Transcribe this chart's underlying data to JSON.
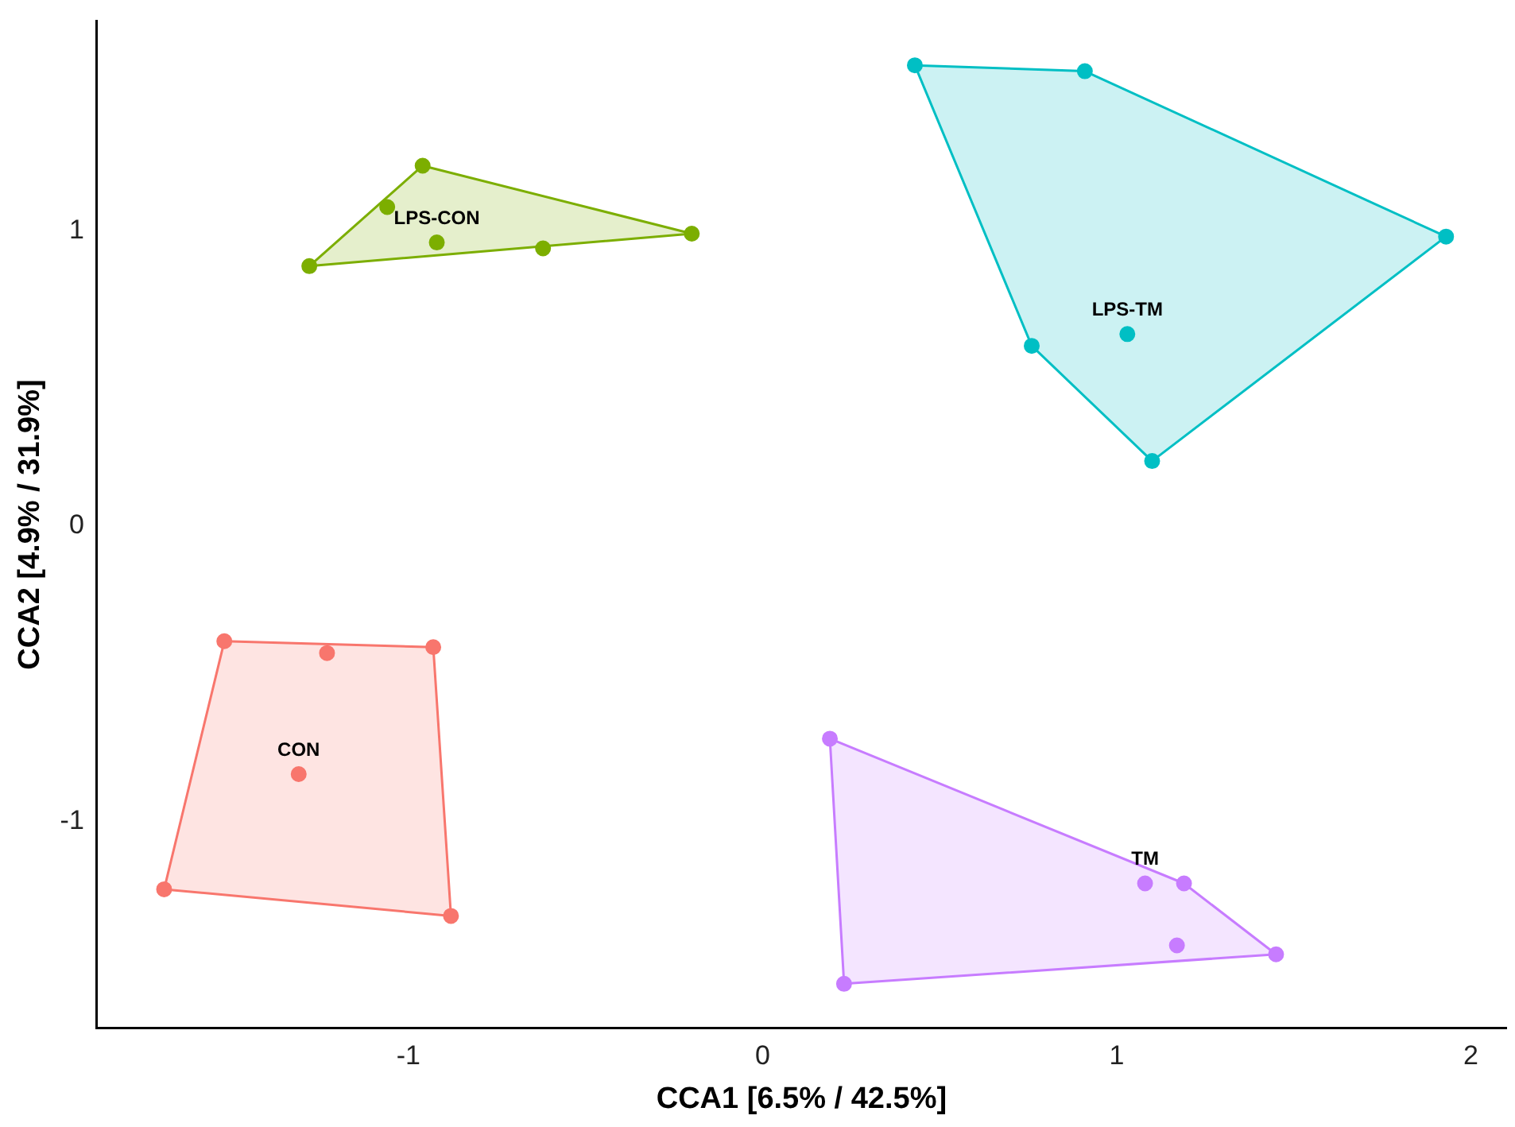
{
  "chart_data": {
    "type": "scatter",
    "xlabel": "CCA1 [6.5% / 42.5%]",
    "ylabel": "CCA2 [4.9% / 31.9%]",
    "xlim": [
      -1.88,
      2.1
    ],
    "ylim": [
      -1.7,
      1.71
    ],
    "xticks": [
      -1,
      0,
      1,
      2
    ],
    "yticks": [
      -1,
      0,
      1
    ],
    "grid": false,
    "legend": false,
    "marker": "circle",
    "series": [
      {
        "type": "area",
        "marker": "none",
        "color": "#f8766d",
        "x": [
          -1.52,
          -0.93,
          -0.88,
          -1.69,
          -1.52
        ],
        "values": [
          -0.39,
          -0.41,
          -1.32,
          -1.23,
          -0.39
        ]
      },
      {
        "type": "area",
        "marker": "none",
        "color": "#7cae00",
        "x": [
          -1.28,
          -0.96,
          -0.2,
          -1.28
        ],
        "values": [
          0.88,
          1.22,
          0.99,
          0.88
        ]
      },
      {
        "type": "area",
        "marker": "none",
        "color": "#00bfc4",
        "x": [
          0.43,
          0.91,
          1.93,
          1.1,
          0.76,
          0.43
        ],
        "values": [
          1.56,
          1.54,
          0.98,
          0.22,
          0.61,
          1.56
        ]
      },
      {
        "type": "area",
        "marker": "none",
        "color": "#c77cff",
        "x": [
          0.19,
          1.19,
          1.45,
          0.23,
          0.19
        ],
        "values": [
          -0.72,
          -1.21,
          -1.45,
          -1.55,
          -0.72
        ]
      },
      {
        "name": "CON",
        "color": "#f8766d",
        "x": [
          -1.52,
          -1.23,
          -0.93,
          -1.31,
          -1.69,
          -0.88
        ],
        "values": [
          -0.39,
          -0.43,
          -0.41,
          -0.84,
          -1.23,
          -1.32
        ]
      },
      {
        "name": "LPS-CON",
        "color": "#7cae00",
        "x": [
          -1.28,
          -0.96,
          -1.06,
          -0.92,
          -0.62,
          -0.2
        ],
        "values": [
          0.88,
          1.22,
          1.08,
          0.96,
          0.94,
          0.99
        ]
      },
      {
        "name": "LPS-TM",
        "color": "#00bfc4",
        "x": [
          0.43,
          0.91,
          1.93,
          0.76,
          1.03,
          1.1
        ],
        "values": [
          1.56,
          1.54,
          0.98,
          0.61,
          0.65,
          0.22
        ]
      },
      {
        "name": "TM",
        "color": "#c77cff",
        "x": [
          0.19,
          1.08,
          1.19,
          1.17,
          1.45,
          0.23
        ],
        "values": [
          -0.72,
          -1.21,
          -1.21,
          -1.42,
          -1.45,
          -1.55
        ]
      }
    ]
  }
}
